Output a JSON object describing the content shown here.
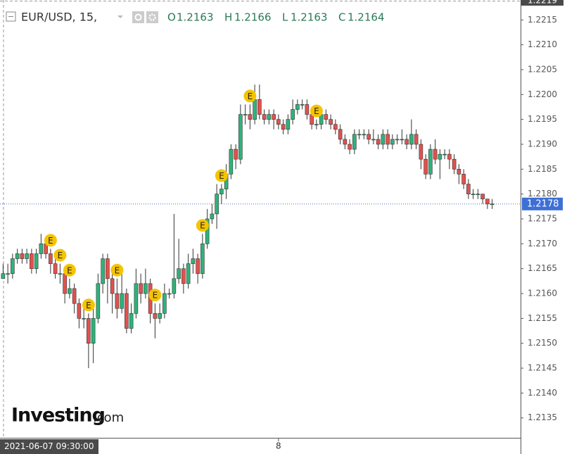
{
  "chart_data": {
    "type": "candlestick",
    "symbol": "EUR/USD, 15,",
    "ohlc_labels": [
      "O",
      "H",
      "L",
      "C"
    ],
    "crosshair_time": "2021-06-07 09:30:00",
    "logo": {
      "main": "Investing",
      "suffix": ".com"
    },
    "up_color": "#2fb37a",
    "down_color": "#e2514e",
    "ylim": [
      1.2131,
      1.2219
    ],
    "yticks": [
      1.2135,
      {
        "value": 1.214,
        "label": "1.2140"
      },
      1.2145,
      {
        "value": 1.215,
        "label": "1.2150"
      },
      1.2155,
      {
        "value": 1.216,
        "label": "1.2160"
      },
      1.2165,
      {
        "value": 1.217,
        "label": "1.2170"
      },
      1.2175,
      {
        "value": 1.218,
        "label": "1.2180"
      },
      1.2185,
      {
        "value": 1.219,
        "label": "1.2190"
      },
      1.2195,
      {
        "value": 1.22,
        "label": "1.2200"
      },
      1.2205,
      {
        "value": 1.221,
        "label": "1.2210"
      },
      1.2215
    ],
    "xticks": [
      {
        "value": 58,
        "label": "8"
      }
    ],
    "last_price": 1.2178,
    "event_label": "E",
    "event_candles": [
      10,
      12,
      14,
      18,
      24,
      32,
      42,
      46,
      52,
      66
    ],
    "candles": [
      [
        1.2163,
        1.2166,
        1.2163,
        1.2164
      ],
      [
        1.2164,
        1.2166,
        1.2162,
        1.2164
      ],
      [
        1.2164,
        1.2168,
        1.2163,
        1.2167
      ],
      [
        1.2167,
        1.2169,
        1.2166,
        1.2168
      ],
      [
        1.2168,
        1.2169,
        1.2166,
        1.2167
      ],
      [
        1.2167,
        1.2169,
        1.2166,
        1.2168
      ],
      [
        1.2168,
        1.2169,
        1.2164,
        1.2165
      ],
      [
        1.2165,
        1.2169,
        1.2164,
        1.2168
      ],
      [
        1.2168,
        1.2172,
        1.2167,
        1.217
      ],
      [
        1.217,
        1.2171,
        1.2167,
        1.2168
      ],
      [
        1.2168,
        1.2169,
        1.2164,
        1.2166
      ],
      [
        1.2166,
        1.2167,
        1.2163,
        1.2164
      ],
      [
        1.2164,
        1.2166,
        1.2162,
        1.2164
      ],
      [
        1.2164,
        1.2165,
        1.2158,
        1.216
      ],
      [
        1.216,
        1.2163,
        1.2159,
        1.2161
      ],
      [
        1.2161,
        1.2162,
        1.2156,
        1.2158
      ],
      [
        1.2158,
        1.2159,
        1.2153,
        1.2155
      ],
      [
        1.2155,
        1.2157,
        1.2153,
        1.2155
      ],
      [
        1.2155,
        1.2156,
        1.2145,
        1.215
      ],
      [
        1.215,
        1.2157,
        1.2146,
        1.2155
      ],
      [
        1.2155,
        1.2164,
        1.2154,
        1.2162
      ],
      [
        1.2162,
        1.2168,
        1.216,
        1.2167
      ],
      [
        1.2167,
        1.2168,
        1.2158,
        1.2163
      ],
      [
        1.2163,
        1.2164,
        1.2156,
        1.216
      ],
      [
        1.216,
        1.2163,
        1.2155,
        1.2157
      ],
      [
        1.2157,
        1.2164,
        1.2156,
        1.216
      ],
      [
        1.216,
        1.2161,
        1.2152,
        1.2153
      ],
      [
        1.2153,
        1.2158,
        1.2152,
        1.2156
      ],
      [
        1.2156,
        1.2165,
        1.2155,
        1.2162
      ],
      [
        1.2162,
        1.2164,
        1.2158,
        1.216
      ],
      [
        1.216,
        1.2165,
        1.2159,
        1.2162
      ],
      [
        1.2162,
        1.2163,
        1.2154,
        1.2156
      ],
      [
        1.2156,
        1.2158,
        1.2151,
        1.2155
      ],
      [
        1.2155,
        1.2158,
        1.2154,
        1.2156
      ],
      [
        1.2156,
        1.2162,
        1.2155,
        1.216
      ],
      [
        1.216,
        1.2161,
        1.2159,
        1.216
      ],
      [
        1.216,
        1.2176,
        1.2159,
        1.2163
      ],
      [
        1.2163,
        1.2171,
        1.2162,
        1.2165
      ],
      [
        1.2165,
        1.2166,
        1.216,
        1.2162
      ],
      [
        1.2162,
        1.2168,
        1.2161,
        1.2166
      ],
      [
        1.2166,
        1.2169,
        1.2164,
        1.2167
      ],
      [
        1.2167,
        1.2168,
        1.2162,
        1.2164
      ],
      [
        1.2164,
        1.2172,
        1.2163,
        1.217
      ],
      [
        1.217,
        1.2177,
        1.2169,
        1.2175
      ],
      [
        1.2175,
        1.2178,
        1.2174,
        1.2176
      ],
      [
        1.2176,
        1.2182,
        1.2173,
        1.218
      ],
      [
        1.218,
        1.2182,
        1.2178,
        1.2181
      ],
      [
        1.2181,
        1.2186,
        1.2179,
        1.2184
      ],
      [
        1.2184,
        1.219,
        1.2183,
        1.2189
      ],
      [
        1.2189,
        1.219,
        1.2185,
        1.2187
      ],
      [
        1.2187,
        1.2198,
        1.2186,
        1.2196
      ],
      [
        1.2196,
        1.2198,
        1.2194,
        1.2196
      ],
      [
        1.2196,
        1.2198,
        1.2193,
        1.2195
      ],
      [
        1.2195,
        1.2202,
        1.2194,
        1.2199
      ],
      [
        1.2199,
        1.2202,
        1.2195,
        1.2196
      ],
      [
        1.2196,
        1.2197,
        1.2194,
        1.2195
      ],
      [
        1.2195,
        1.2197,
        1.2194,
        1.2196
      ],
      [
        1.2196,
        1.2197,
        1.2193,
        1.2195
      ],
      [
        1.2195,
        1.2196,
        1.2193,
        1.2194
      ],
      [
        1.2194,
        1.2195,
        1.2192,
        1.2193
      ],
      [
        1.2193,
        1.2196,
        1.2192,
        1.2195
      ],
      [
        1.2195,
        1.2199,
        1.2194,
        1.2197
      ],
      [
        1.2197,
        1.2199,
        1.2196,
        1.2198
      ],
      [
        1.2198,
        1.2199,
        1.2197,
        1.2198
      ],
      [
        1.2198,
        1.2199,
        1.2195,
        1.2196
      ],
      [
        1.2196,
        1.2197,
        1.2193,
        1.2194
      ],
      [
        1.2194,
        1.2195,
        1.2193,
        1.2194
      ],
      [
        1.2194,
        1.2197,
        1.2193,
        1.2196
      ],
      [
        1.2196,
        1.2197,
        1.2194,
        1.2195
      ],
      [
        1.2195,
        1.2196,
        1.2193,
        1.2194
      ],
      [
        1.2194,
        1.2195,
        1.2192,
        1.2193
      ],
      [
        1.2193,
        1.2194,
        1.219,
        1.2191
      ],
      [
        1.2191,
        1.2192,
        1.2189,
        1.219
      ],
      [
        1.219,
        1.2191,
        1.2188,
        1.2189
      ],
      [
        1.2189,
        1.2193,
        1.2188,
        1.2192
      ],
      [
        1.2192,
        1.2193,
        1.2191,
        1.2192
      ],
      [
        1.2192,
        1.2193,
        1.2191,
        1.2192
      ],
      [
        1.2192,
        1.2193,
        1.219,
        1.2191
      ],
      [
        1.2191,
        1.2193,
        1.219,
        1.2191
      ],
      [
        1.2191,
        1.2192,
        1.2189,
        1.219
      ],
      [
        1.219,
        1.2193,
        1.2189,
        1.2192
      ],
      [
        1.2192,
        1.2193,
        1.2189,
        1.219
      ],
      [
        1.219,
        1.2192,
        1.2189,
        1.2191
      ],
      [
        1.2191,
        1.2192,
        1.219,
        1.2191
      ],
      [
        1.2191,
        1.2193,
        1.219,
        1.2191
      ],
      [
        1.2191,
        1.2192,
        1.2189,
        1.219
      ],
      [
        1.219,
        1.2195,
        1.2189,
        1.2192
      ],
      [
        1.2192,
        1.2193,
        1.2189,
        1.219
      ],
      [
        1.219,
        1.2191,
        1.2185,
        1.2187
      ],
      [
        1.2187,
        1.2188,
        1.2183,
        1.2184
      ],
      [
        1.2184,
        1.219,
        1.2183,
        1.2189
      ],
      [
        1.2189,
        1.2191,
        1.2186,
        1.2187
      ],
      [
        1.2187,
        1.2189,
        1.2183,
        1.2188
      ],
      [
        1.2188,
        1.2189,
        1.2187,
        1.2188
      ],
      [
        1.2188,
        1.2189,
        1.2185,
        1.2187
      ],
      [
        1.2187,
        1.2188,
        1.2184,
        1.2185
      ],
      [
        1.2185,
        1.2186,
        1.2182,
        1.2184
      ],
      [
        1.2184,
        1.2185,
        1.2181,
        1.2182
      ],
      [
        1.2182,
        1.2183,
        1.2179,
        1.218
      ],
      [
        1.218,
        1.2181,
        1.2179,
        1.218
      ],
      [
        1.218,
        1.2181,
        1.2179,
        1.218
      ],
      [
        1.218,
        1.218,
        1.2178,
        1.2179
      ],
      [
        1.2179,
        1.2179,
        1.2177,
        1.2178
      ],
      [
        1.2178,
        1.2179,
        1.2177,
        1.2178
      ]
    ]
  }
}
